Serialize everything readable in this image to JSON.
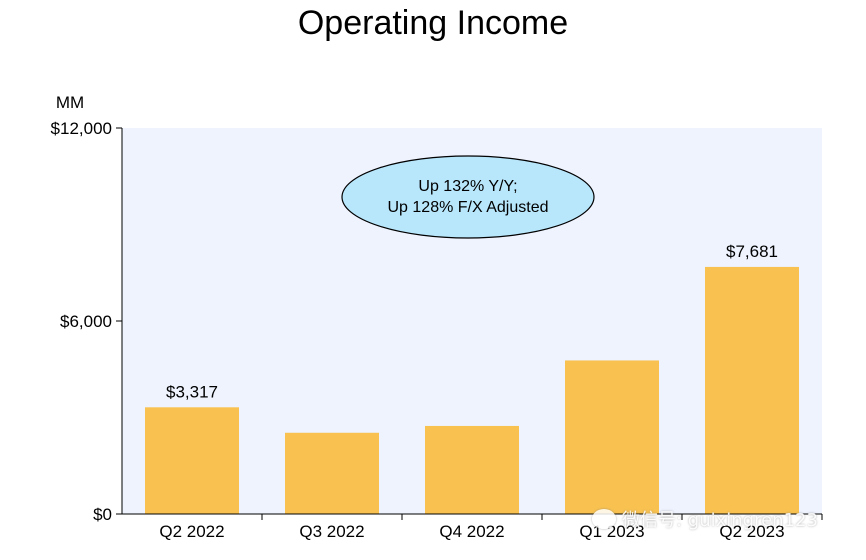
{
  "chart_data": {
    "type": "bar",
    "title": "Operating Income",
    "unit_label": "MM",
    "categories": [
      "Q2 2022",
      "Q3 2022",
      "Q4 2022",
      "Q1 2023",
      "Q2 2023"
    ],
    "values": [
      3317,
      2525,
      2737,
      4774,
      7681
    ],
    "data_labels": [
      "$3,317",
      "",
      "",
      "",
      "$7,681"
    ],
    "ylim": [
      0,
      12000
    ],
    "yticks": [
      0,
      6000,
      12000
    ],
    "ytick_labels": [
      "$0",
      "$6,000",
      "$12,000"
    ],
    "annotation": [
      "Up 132% Y/Y;",
      "Up 128% F/X Adjusted"
    ],
    "colors": {
      "bar": "#F9C250",
      "plot_bg": "#EEF3FE",
      "annotation_fill": "#B8E6FB"
    },
    "grid": false
  },
  "watermark": "微信号: guixingren123"
}
